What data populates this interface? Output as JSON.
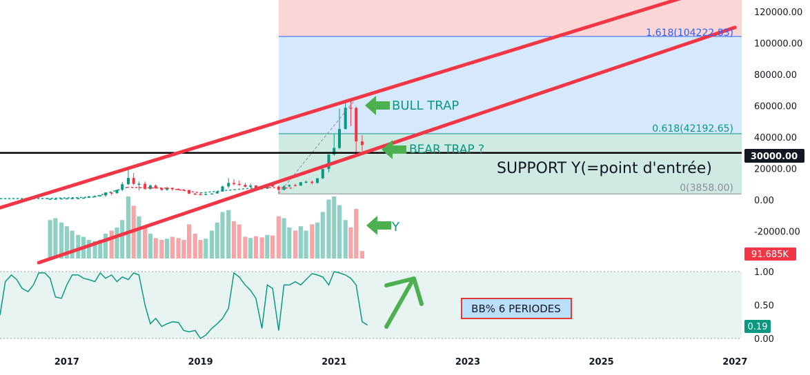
{
  "chart_data": [
    {
      "type": "candlestick",
      "title": "",
      "ylim": [
        -40000,
        130000
      ],
      "y_ticks": [
        "120000.00",
        "100000.00",
        "80000.00",
        "60000.00",
        "40000.00",
        "20000.00",
        "0.00",
        "-20000.00"
      ],
      "x_ticks": [
        "2017",
        "2019",
        "2021",
        "2023",
        "2025",
        "2027"
      ],
      "price_badge": "30000.00",
      "volume_badge": "91.685K",
      "fib_levels": [
        {
          "label": "1.618(104222.83)",
          "value": 104222.83
        },
        {
          "label": "0.618(42192.65)",
          "value": 42192.65
        },
        {
          "label": "0(3858.00)",
          "value": 3858.0
        }
      ],
      "support_level": 30000,
      "annotations": {
        "bull_trap": "BULL TRAP",
        "bear_trap": "BEAR TRAP ?",
        "support": "SUPPORT Y(=point d'entrée)",
        "y_marker": "Y"
      },
      "candles": {
        "x": [
          2016.75,
          2016.83,
          2016.92,
          2017.0,
          2017.08,
          2017.17,
          2017.25,
          2017.33,
          2017.42,
          2017.5,
          2017.58,
          2017.67,
          2017.75,
          2017.83,
          2017.92,
          2018.0,
          2018.08,
          2018.17,
          2018.25,
          2018.33,
          2018.42,
          2018.5,
          2018.58,
          2018.67,
          2018.75,
          2018.83,
          2018.92,
          2019.0,
          2019.08,
          2019.17,
          2019.25,
          2019.33,
          2019.42,
          2019.5,
          2019.58,
          2019.67,
          2019.75,
          2019.83,
          2019.92,
          2020.0,
          2020.08,
          2020.17,
          2020.25,
          2020.33,
          2020.42,
          2020.5,
          2020.58,
          2020.67,
          2020.75,
          2020.83,
          2020.92,
          2021.0,
          2021.08,
          2021.17,
          2021.25,
          2021.33,
          2021.42
        ],
        "open": [
          600,
          700,
          750,
          950,
          1000,
          1100,
          1100,
          1400,
          2300,
          2500,
          2900,
          4700,
          4300,
          6400,
          10000,
          14000,
          10200,
          10300,
          7000,
          9200,
          7500,
          6400,
          7700,
          7000,
          6600,
          6300,
          4000,
          3700,
          3400,
          3800,
          4100,
          5300,
          8600,
          10800,
          10100,
          9600,
          8300,
          9200,
          7600,
          7200,
          9400,
          8500,
          6400,
          8600,
          9400,
          9100,
          11300,
          11600,
          10800,
          13800,
          19700,
          29000,
          33100,
          45200,
          58800,
          58700,
          37300
        ],
        "close": [
          700,
          750,
          950,
          1000,
          1100,
          1100,
          1400,
          2300,
          2500,
          2900,
          4700,
          4300,
          6400,
          10000,
          14000,
          10200,
          10300,
          7000,
          9200,
          7500,
          6400,
          7700,
          7000,
          6600,
          6300,
          4000,
          3700,
          3400,
          3800,
          4100,
          5300,
          8600,
          10800,
          10100,
          9600,
          8300,
          9200,
          7600,
          7200,
          9400,
          8500,
          6400,
          8600,
          9400,
          9100,
          11300,
          11600,
          10800,
          13800,
          19700,
          29000,
          33100,
          45200,
          58800,
          58700,
          37300,
          35000
        ],
        "high": [
          750,
          780,
          980,
          1150,
          1200,
          1300,
          1450,
          2500,
          2950,
          3000,
          4800,
          4950,
          6500,
          11400,
          19800,
          17200,
          11800,
          11700,
          9750,
          9900,
          7800,
          8400,
          7950,
          7400,
          6900,
          6500,
          4400,
          4100,
          4200,
          4100,
          5600,
          9000,
          13900,
          13100,
          12300,
          10900,
          10500,
          9500,
          7900,
          9600,
          10500,
          9100,
          9400,
          10000,
          10400,
          11400,
          12400,
          12400,
          13900,
          19800,
          29200,
          41900,
          58300,
          61800,
          64800,
          59500,
          41300
        ],
        "low": [
          580,
          680,
          720,
          900,
          950,
          1000,
          950,
          1300,
          1900,
          2100,
          1900,
          3000,
          4000,
          5500,
          9500,
          9400,
          6000,
          6500,
          6500,
          7000,
          5800,
          5800,
          5900,
          6100,
          6200,
          3700,
          3200,
          3300,
          3300,
          3700,
          4000,
          5300,
          7500,
          9100,
          9300,
          8000,
          7400,
          6600,
          6500,
          6900,
          8400,
          3858,
          6200,
          8200,
          8900,
          9000,
          10600,
          10000,
          10400,
          13200,
          17600,
          28100,
          32300,
          44900,
          47000,
          30000,
          31000
        ]
      },
      "volume": [
        0.62,
        0.65,
        0.58,
        0.52,
        0.45,
        0.38,
        0.35,
        0.3,
        0.28,
        0.3,
        0.4,
        0.45,
        0.5,
        0.62,
        1.0,
        0.85,
        0.68,
        0.5,
        0.4,
        0.33,
        0.3,
        0.32,
        0.35,
        0.33,
        0.3,
        0.55,
        0.4,
        0.3,
        0.32,
        0.45,
        0.58,
        0.75,
        0.78,
        0.6,
        0.55,
        0.35,
        0.33,
        0.36,
        0.34,
        0.38,
        0.37,
        0.68,
        0.65,
        0.5,
        0.45,
        0.52,
        0.45,
        0.55,
        0.58,
        0.75,
        0.95,
        1.0,
        0.86,
        0.62,
        0.5,
        0.8,
        0.12
      ],
      "ma_line": [
        {
          "x": 2016.0,
          "y": 800
        },
        {
          "x": 2016.7,
          "y": 900
        },
        {
          "x": 2017.4,
          "y": 1800
        },
        {
          "x": 2017.9,
          "y": 8000
        },
        {
          "x": 2018.5,
          "y": 7500
        },
        {
          "x": 2019.0,
          "y": 4500
        },
        {
          "x": 2019.5,
          "y": 6500
        },
        {
          "x": 2019.9,
          "y": 8000
        },
        {
          "x": 2020.4,
          "y": 7500
        }
      ],
      "channel_upper": [
        {
          "x": 2016.0,
          "y": -5000
        },
        {
          "x": 2026.3,
          "y": 130000
        }
      ],
      "channel_lower": [
        {
          "x": 2016.58,
          "y": -40000
        },
        {
          "x": 2027.0,
          "y": 110000
        }
      ],
      "fib_box": {
        "x_start": 2020.17
      },
      "fib_trend": [
        {
          "x": 2020.17,
          "y": 3858
        },
        {
          "x": 2021.33,
          "y": 64800
        }
      ]
    },
    {
      "type": "line",
      "title": "",
      "label": "BB% 6 PERIODES",
      "ylim": [
        0,
        1
      ],
      "y_ticks": [
        "1.00",
        "0.50",
        "0.00"
      ],
      "badge": "0.19",
      "x": [
        2016.0,
        2016.08,
        2016.17,
        2016.25,
        2016.33,
        2016.42,
        2016.5,
        2016.58,
        2016.67,
        2016.75,
        2016.83,
        2016.92,
        2017.0,
        2017.08,
        2017.17,
        2017.25,
        2017.33,
        2017.42,
        2017.5,
        2017.58,
        2017.67,
        2017.75,
        2017.83,
        2017.92,
        2018.0,
        2018.08,
        2018.17,
        2018.25,
        2018.33,
        2018.42,
        2018.5,
        2018.58,
        2018.67,
        2018.75,
        2018.83,
        2018.92,
        2019.0,
        2019.08,
        2019.17,
        2019.25,
        2019.33,
        2019.42,
        2019.5,
        2019.58,
        2019.67,
        2019.75,
        2019.83,
        2019.92,
        2020.0,
        2020.08,
        2020.17,
        2020.25,
        2020.33,
        2020.42,
        2020.5,
        2020.58,
        2020.67,
        2020.75,
        2020.83,
        2020.92,
        2021.0,
        2021.08,
        2021.17,
        2021.25,
        2021.33,
        2021.42,
        2021.5
      ],
      "values": [
        0.35,
        0.85,
        0.95,
        0.88,
        0.75,
        0.7,
        0.8,
        0.98,
        0.98,
        0.9,
        0.62,
        0.6,
        0.8,
        0.95,
        0.95,
        0.9,
        0.88,
        0.85,
        0.98,
        0.9,
        0.95,
        0.85,
        0.92,
        0.88,
        0.98,
        0.95,
        0.5,
        0.22,
        0.3,
        0.18,
        0.22,
        0.25,
        0.24,
        0.12,
        0.1,
        0.12,
        0.0,
        0.05,
        0.15,
        0.22,
        0.3,
        0.45,
        0.98,
        0.92,
        0.8,
        0.72,
        0.6,
        0.15,
        0.8,
        0.75,
        0.12,
        0.8,
        0.8,
        0.85,
        0.8,
        0.88,
        0.97,
        0.95,
        0.92,
        0.8,
        1.0,
        0.98,
        0.95,
        0.9,
        0.8,
        0.25,
        0.2
      ]
    }
  ]
}
